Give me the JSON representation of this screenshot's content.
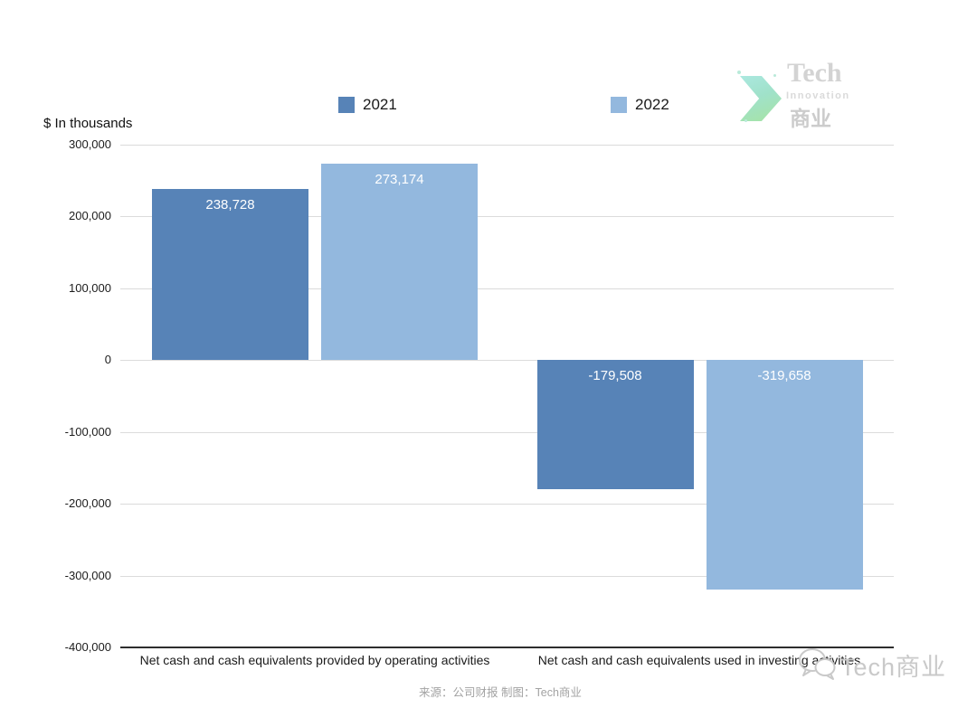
{
  "unit_label": "$ In thousands",
  "logo": {
    "line1": "Tech",
    "line2": "Innovation",
    "line3": "商业",
    "arrow_icon": "chevron-right-arrow-icon",
    "accent_teal": "#9ce4da",
    "accent_green": "#97df93"
  },
  "watermark": {
    "icon": "wechat-icon",
    "text": "Tech商业"
  },
  "footer": {
    "text": "来源：公司财报 制图：Tech商业"
  },
  "chart_data": {
    "type": "bar",
    "title": "",
    "unit_label": "$ In thousands",
    "categories": [
      "Net cash and cash equivalents provided by operating activities",
      "Net cash and cash equivalents used in investing activities"
    ],
    "series": [
      {
        "name": "2021",
        "color": "#5783b7",
        "values": [
          238728,
          -179508
        ],
        "labels": [
          "238,728",
          "-179,508"
        ]
      },
      {
        "name": "2022",
        "color": "#93b8de",
        "values": [
          273174,
          -319658
        ],
        "labels": [
          "273,174",
          "-319,658"
        ]
      }
    ],
    "ylim": [
      -400000,
      300000
    ],
    "yticks": [
      300000,
      200000,
      100000,
      0,
      -100000,
      -200000,
      -300000,
      -400000
    ],
    "ytick_labels": [
      "300,000",
      "200,000",
      "100,000",
      "0",
      "-100,000",
      "-200,000",
      "-300,000",
      "-400,000"
    ],
    "grid": true,
    "legend_position": "top",
    "value_label_color": "#ffffff"
  }
}
